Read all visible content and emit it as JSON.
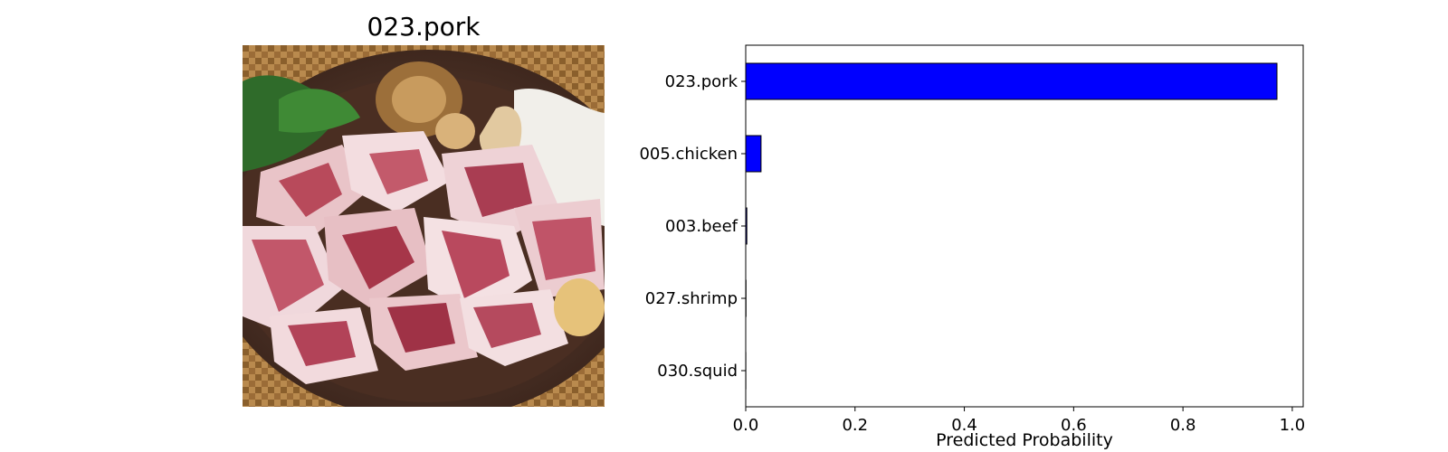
{
  "image_panel": {
    "title": "023.pork",
    "photo_description_icon": "pork-dish-photo"
  },
  "chart_data": {
    "type": "bar",
    "orientation": "horizontal",
    "categories": [
      "023.pork",
      "005.chicken",
      "003.beef",
      "027.shrimp",
      "030.squid"
    ],
    "values": [
      0.972,
      0.028,
      0.002,
      0.0005,
      0.0002
    ],
    "title": "",
    "xlabel": "Predicted Probability",
    "ylabel": "",
    "xlim": [
      0.0,
      1.02
    ],
    "xticks": [
      "0.0",
      "0.2",
      "0.4",
      "0.6",
      "0.8",
      "1.0"
    ],
    "grid": false,
    "legend": "none",
    "bar_color": "#0000ff",
    "edge_color": "#000000"
  }
}
